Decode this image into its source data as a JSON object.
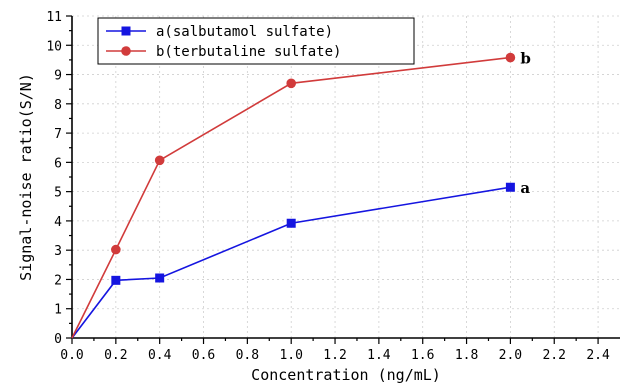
{
  "chart_data": {
    "type": "line",
    "title": "",
    "xlabel": "Concentration (ng/mL)",
    "ylabel": "Signal-noise ratio(S/N)",
    "xlim": [
      0,
      2.5
    ],
    "ylim": [
      0,
      11
    ],
    "xticks": [
      "0.0",
      "0.2",
      "0.4",
      "0.6",
      "0.8",
      "1.0",
      "1.2",
      "1.4",
      "1.6",
      "1.8",
      "2.0",
      "2.2",
      "2.4"
    ],
    "yticks": [
      "0",
      "1",
      "2",
      "3",
      "4",
      "5",
      "6",
      "7",
      "8",
      "9",
      "10",
      "11"
    ],
    "grid": true,
    "legend_position": "top-left",
    "series": [
      {
        "name": "a(salbutamol sulfate)",
        "end_label": "a",
        "color": "#1515e0",
        "marker": "square",
        "x": [
          0,
          0.2,
          0.4,
          1.0,
          2.0
        ],
        "y": [
          0,
          1.97,
          2.05,
          3.92,
          5.15
        ]
      },
      {
        "name": "b(terbutaline sulfate)",
        "end_label": "b",
        "color": "#d13b3b",
        "marker": "circle",
        "x": [
          0,
          0.2,
          0.4,
          1.0,
          2.0
        ],
        "y": [
          0,
          3.02,
          6.07,
          8.7,
          9.58
        ]
      }
    ]
  }
}
